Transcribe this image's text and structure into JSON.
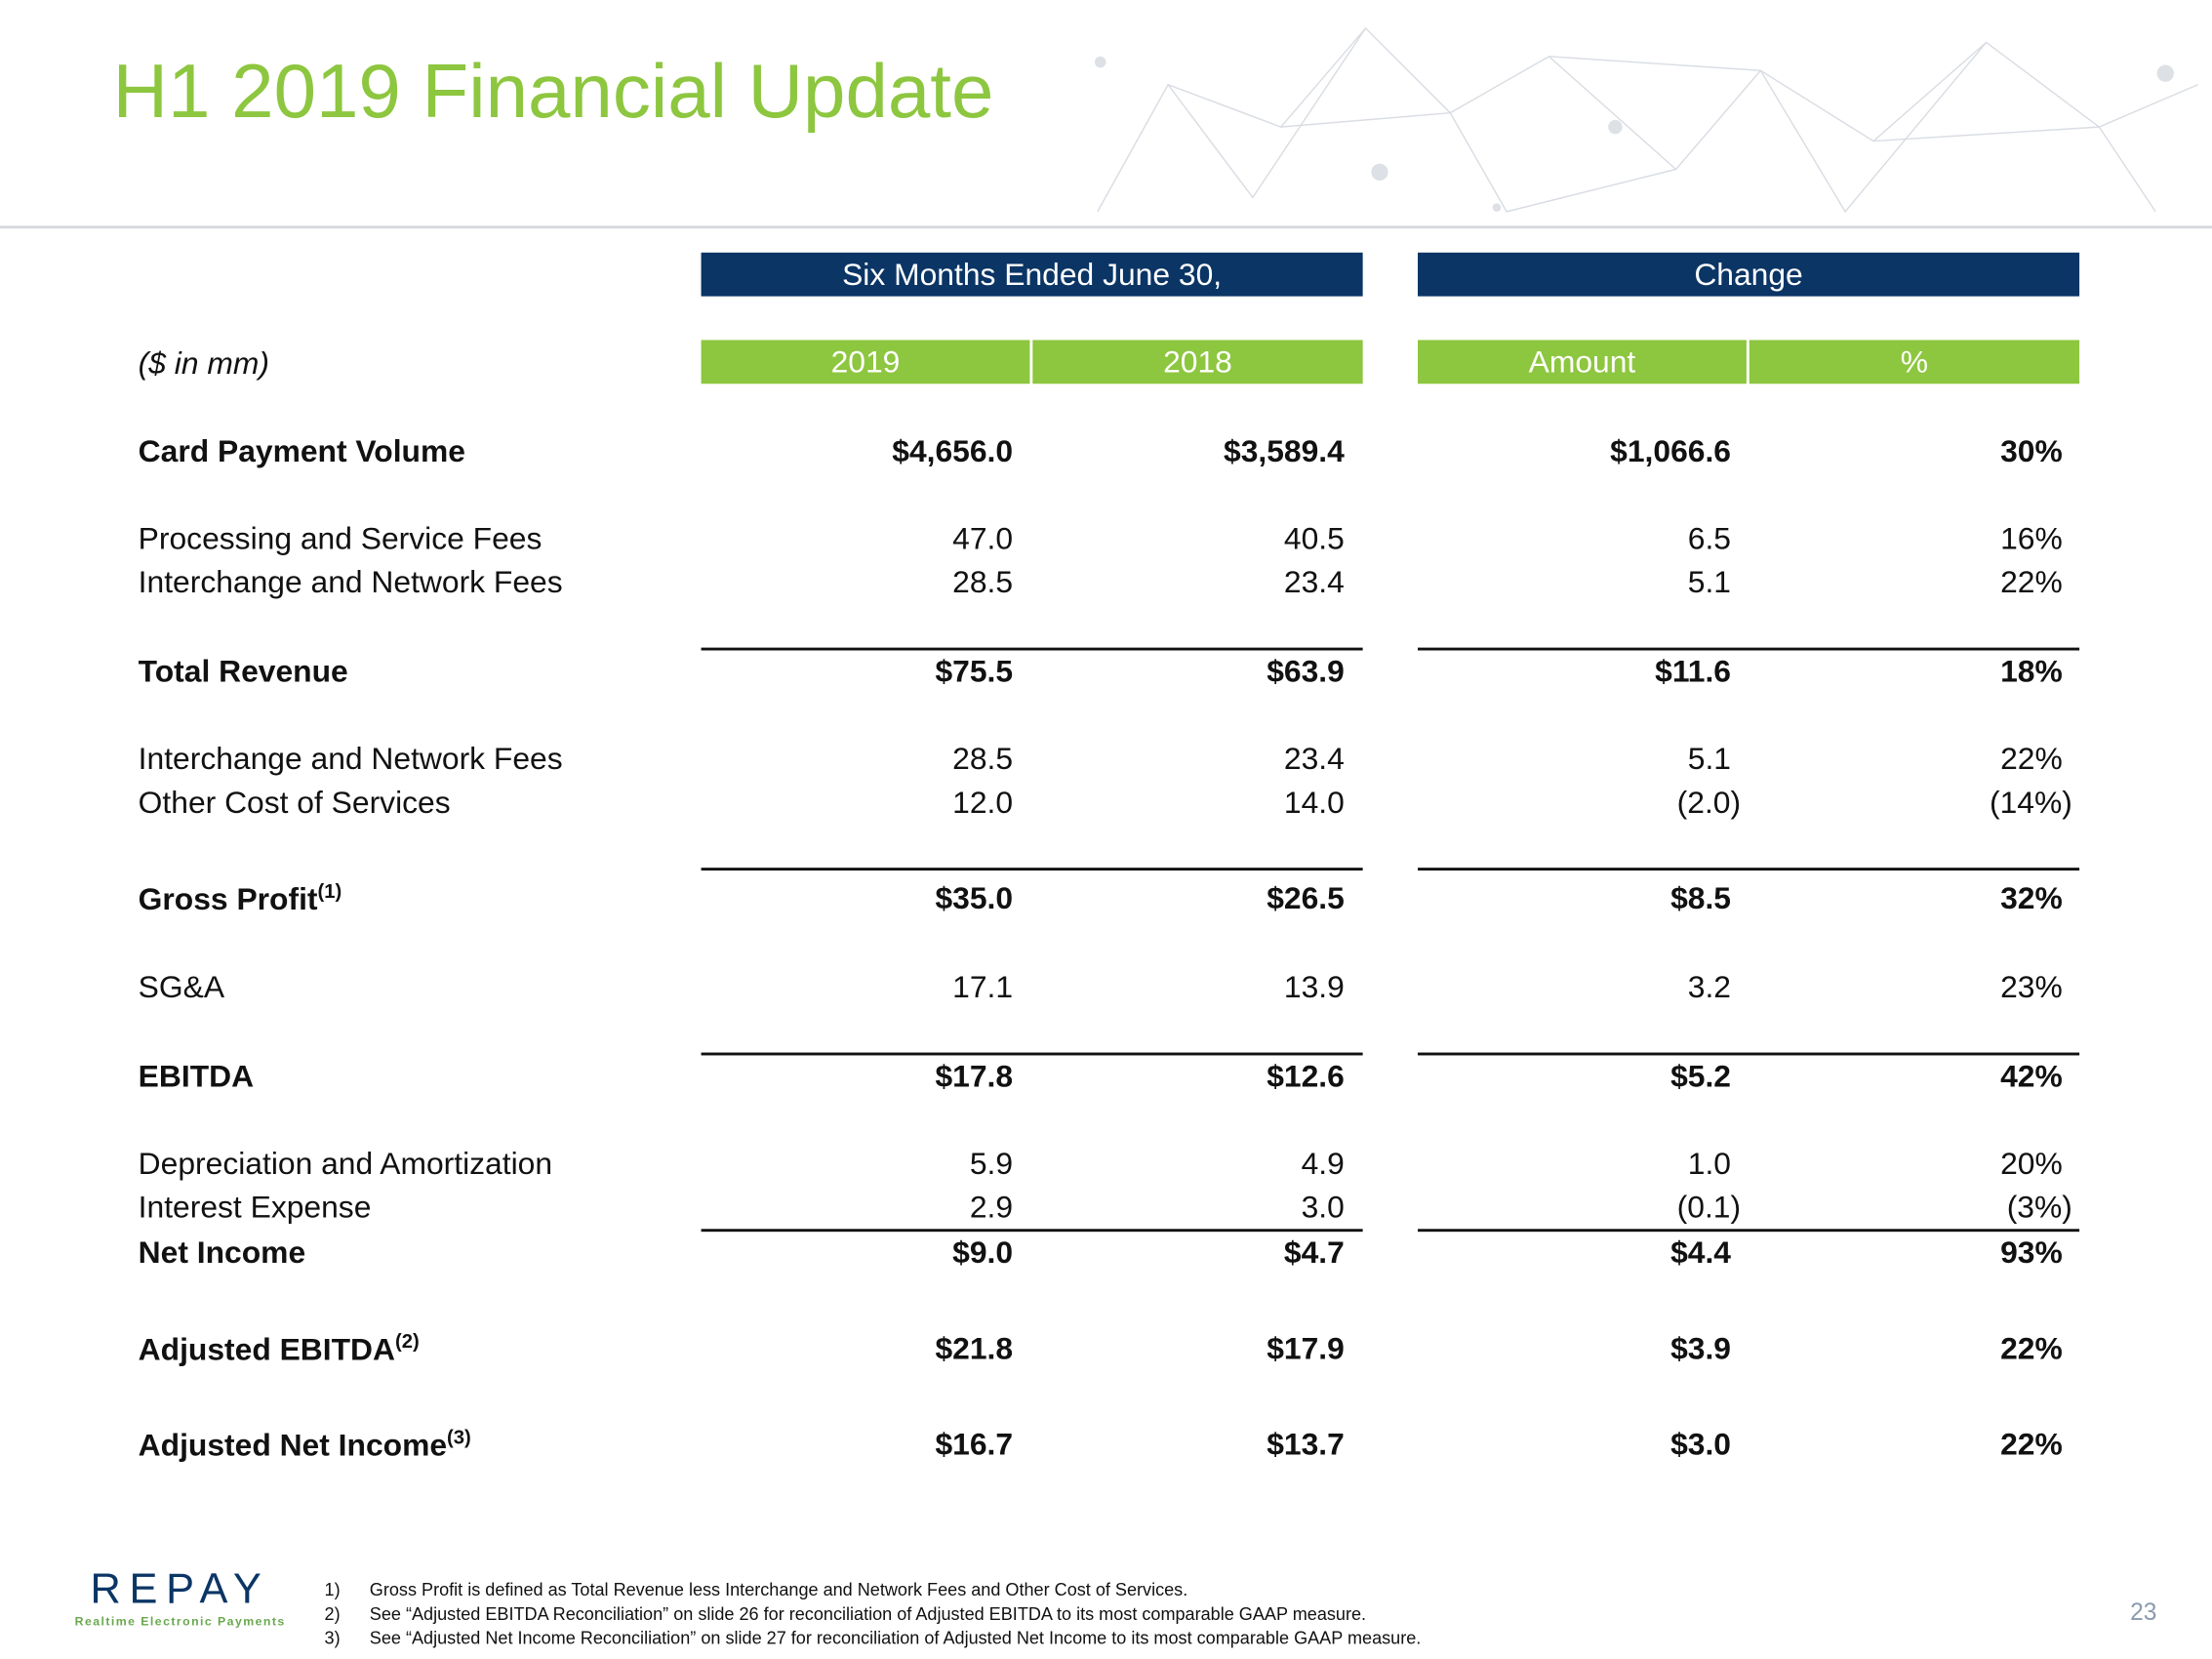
{
  "header": {
    "title": "H1 2019 Financial Update"
  },
  "table": {
    "group_headers": [
      "Six Months Ended June 30,",
      "Change"
    ],
    "unit_label": "($ in mm)",
    "columns": [
      "2019",
      "2018",
      "Amount",
      "%"
    ],
    "rows": [
      {
        "label": "Card Payment Volume",
        "bold": true,
        "values": [
          "$4,656.0",
          "$3,589.4",
          "$1,066.6",
          "30%"
        ]
      },
      {
        "label": "Processing and Service Fees",
        "bold": false,
        "values": [
          "47.0",
          "40.5",
          "6.5",
          "16%"
        ]
      },
      {
        "label": "Interchange and Network Fees",
        "bold": false,
        "values": [
          "28.5",
          "23.4",
          "5.1",
          "22%"
        ]
      },
      {
        "label": "Total Revenue",
        "bold": true,
        "values": [
          "$75.5",
          "$63.9",
          "$11.6",
          "18%"
        ]
      },
      {
        "label": "Interchange and Network Fees",
        "bold": false,
        "values": [
          "28.5",
          "23.4",
          "5.1",
          "22%"
        ]
      },
      {
        "label": "Other Cost of Services",
        "bold": false,
        "values": [
          "12.0",
          "14.0",
          "(2.0)",
          "(14%)"
        ]
      },
      {
        "label": "Gross Profit",
        "note": "(1)",
        "bold": true,
        "values": [
          "$35.0",
          "$26.5",
          "$8.5",
          "32%"
        ]
      },
      {
        "label": "SG&A",
        "bold": false,
        "values": [
          "17.1",
          "13.9",
          "3.2",
          "23%"
        ]
      },
      {
        "label": "EBITDA",
        "bold": true,
        "values": [
          "$17.8",
          "$12.6",
          "$5.2",
          "42%"
        ]
      },
      {
        "label": "Depreciation and Amortization",
        "bold": false,
        "values": [
          "5.9",
          "4.9",
          "1.0",
          "20%"
        ]
      },
      {
        "label": "Interest Expense",
        "bold": false,
        "values": [
          "2.9",
          "3.0",
          "(0.1)",
          "(3%)"
        ]
      },
      {
        "label": "Net Income",
        "bold": true,
        "values": [
          "$9.0",
          "$4.7",
          "$4.4",
          "93%"
        ]
      },
      {
        "label": "Adjusted EBITDA",
        "note": "(2)",
        "bold": true,
        "values": [
          "$21.8",
          "$17.9",
          "$3.9",
          "22%"
        ]
      },
      {
        "label": "Adjusted Net Income",
        "note": "(3)",
        "bold": true,
        "values": [
          "$16.7",
          "$13.7",
          "$3.0",
          "22%"
        ]
      }
    ]
  },
  "footnotes": [
    {
      "marker": "1)",
      "text": "Gross Profit is defined as Total Revenue less Interchange and Network Fees and Other Cost of Services."
    },
    {
      "marker": "2)",
      "text": "See “Adjusted EBITDA Reconciliation” on slide 26 for reconciliation of Adjusted EBITDA to its most comparable GAAP measure."
    },
    {
      "marker": "3)",
      "text": "See “Adjusted Net Income Reconciliation” on slide 27 for reconciliation of Adjusted Net Income to its most comparable GAAP measure."
    }
  ],
  "footer": {
    "logo": "REPAY",
    "tagline": "Realtime Electronic Payments",
    "page_number": "23"
  }
}
